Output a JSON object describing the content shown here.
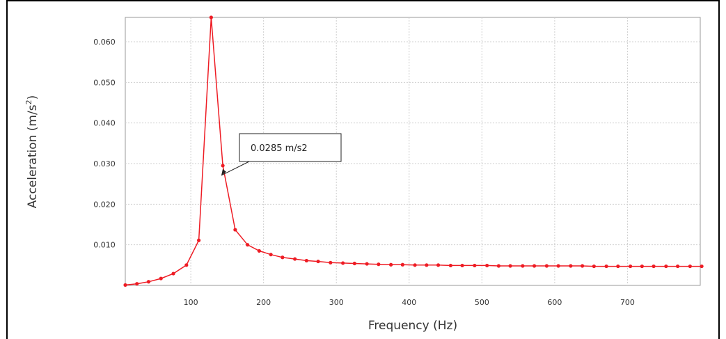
{
  "chart_data": {
    "type": "line",
    "title": "",
    "xlabel": "Frequency (Hz)",
    "ylabel_base": "Acceleration (m/s",
    "ylabel_sup": "2",
    "ylabel_end": ")",
    "xlim": [
      10,
      800
    ],
    "ylim": [
      0,
      0.066
    ],
    "x_ticks": [
      100,
      200,
      300,
      400,
      500,
      600,
      700
    ],
    "x_tick_labels": [
      "100",
      "200",
      "300",
      "400",
      "500",
      "600",
      "700"
    ],
    "y_ticks": [
      0.01,
      0.02,
      0.03,
      0.04,
      0.05,
      0.06
    ],
    "y_tick_labels": [
      "0.010",
      "0.020",
      "0.030",
      "0.040",
      "0.050",
      "0.060"
    ],
    "grid": true,
    "legend": false,
    "colors": {
      "series": "#ee1c24",
      "grid": "#cfcfcf",
      "axis": "#9a9a9a",
      "border": "#000000"
    },
    "series": [
      {
        "x": [
          10,
          26,
          42,
          59,
          76,
          94,
          111,
          128,
          144,
          161,
          178,
          194,
          210,
          226,
          243,
          259,
          275,
          292,
          309,
          325,
          342,
          358,
          375,
          391,
          408,
          424,
          440,
          457,
          473,
          490,
          507,
          523,
          539,
          556,
          572,
          589,
          605,
          622,
          638,
          654,
          671,
          687,
          704,
          720,
          736,
          753,
          769,
          786,
          802
        ],
        "y": [
          0.0001,
          0.0004,
          0.0009,
          0.0017,
          0.0029,
          0.005,
          0.0111,
          0.066,
          0.0295,
          0.0137,
          0.01,
          0.0085,
          0.0076,
          0.0069,
          0.0065,
          0.0061,
          0.0059,
          0.0056,
          0.0055,
          0.0054,
          0.0053,
          0.0052,
          0.0051,
          0.0051,
          0.005,
          0.005,
          0.005,
          0.0049,
          0.0049,
          0.0049,
          0.0049,
          0.0048,
          0.0048,
          0.0048,
          0.0048,
          0.0048,
          0.0048,
          0.0048,
          0.0048,
          0.0047,
          0.0047,
          0.0047,
          0.0047,
          0.0047,
          0.0047,
          0.0047,
          0.0047,
          0.0047,
          0.0047
        ]
      }
    ],
    "annotations": [
      {
        "text": "0.0285 m/s2",
        "x": 142,
        "y": 0.0271
      }
    ]
  }
}
